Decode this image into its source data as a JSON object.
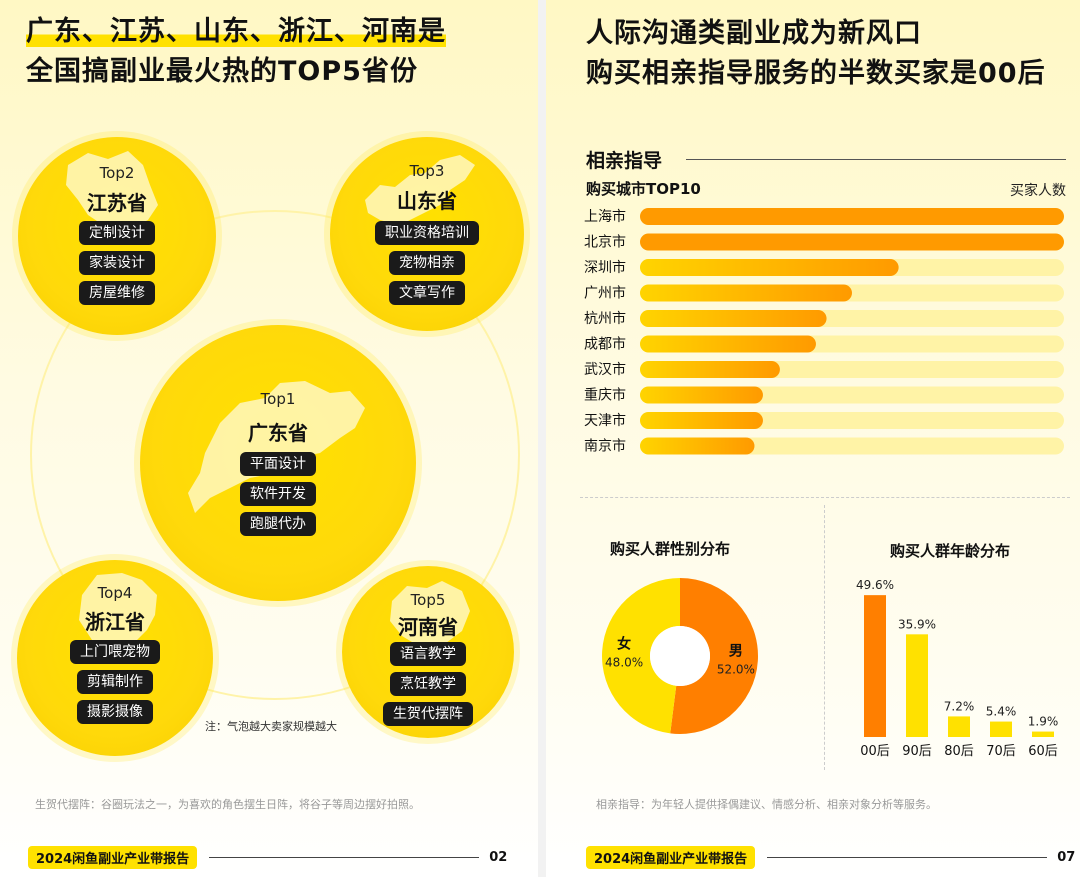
{
  "left_page": {
    "title_line1": "广东、江苏、山东、浙江、河南是",
    "title_line2": "全国搞副业最火热的TOP5省份",
    "provinces": [
      {
        "rank": "Top1",
        "name": "广东省",
        "tags": [
          "平面设计",
          "软件开发",
          "跑腿代办"
        ]
      },
      {
        "rank": "Top2",
        "name": "江苏省",
        "tags": [
          "定制设计",
          "家装设计",
          "房屋维修"
        ]
      },
      {
        "rank": "Top3",
        "name": "山东省",
        "tags": [
          "职业资格培训",
          "宠物相亲",
          "文章写作"
        ]
      },
      {
        "rank": "Top4",
        "name": "浙江省",
        "tags": [
          "上门喂宠物",
          "剪辑制作",
          "摄影摄像"
        ]
      },
      {
        "rank": "Top5",
        "name": "河南省",
        "tags": [
          "语言教学",
          "烹饪教学",
          "生贺代摆阵"
        ]
      }
    ],
    "note": "注：气泡越大卖家规模越大",
    "footnote": "生贺代摆阵：谷圈玩法之一，为喜欢的角色摆生日阵，将谷子等周边摆好拍照。",
    "footer_brand": "2024闲鱼副业产业带报告",
    "page_number": "02"
  },
  "right_page": {
    "title_line1": "人际沟通类副业成为新风口",
    "title_line2": "购买相亲指导服务的半数买家是00后",
    "section_title": "相亲指导",
    "footnote": "相亲指导：为年轻人提供择偶建议、情感分析、相亲对象分析等服务。",
    "footer_brand": "2024闲鱼副业产业带报告",
    "page_number": "07"
  },
  "chart_data": [
    {
      "type": "bar",
      "orientation": "horizontal",
      "title": "购买城市TOP10",
      "value_label": "买家人数",
      "categories": [
        "上海市",
        "北京市",
        "深圳市",
        "广州市",
        "杭州市",
        "成都市",
        "武汉市",
        "重庆市",
        "天津市",
        "南京市"
      ],
      "values": [
        100,
        100,
        61,
        50,
        44,
        41.5,
        33,
        29,
        29,
        27
      ],
      "xlim": [
        0,
        100
      ],
      "colors": {
        "bar": "#ff9a00",
        "bar_fade": "#ffd400",
        "track": "#fff3a6"
      }
    },
    {
      "type": "pie",
      "title": "购买人群性别分布",
      "slices": [
        {
          "label": "男",
          "value": 52.0,
          "value_label": "52.0%",
          "color": "#ff7f00"
        },
        {
          "label": "女",
          "value": 48.0,
          "value_label": "48.0%",
          "color": "#ffe100"
        }
      ]
    },
    {
      "type": "bar",
      "title": "购买人群年龄分布",
      "categories": [
        "00后",
        "90后",
        "80后",
        "70后",
        "60后"
      ],
      "values": [
        49.6,
        35.9,
        7.2,
        5.4,
        1.9
      ],
      "value_labels": [
        "49.6%",
        "35.9%",
        "7.2%",
        "5.4%",
        "1.9%"
      ],
      "ylim": [
        0,
        50
      ],
      "colors": [
        "#ff7f00",
        "#ffe100",
        "#ffe100",
        "#ffe100",
        "#ffe100"
      ]
    }
  ]
}
